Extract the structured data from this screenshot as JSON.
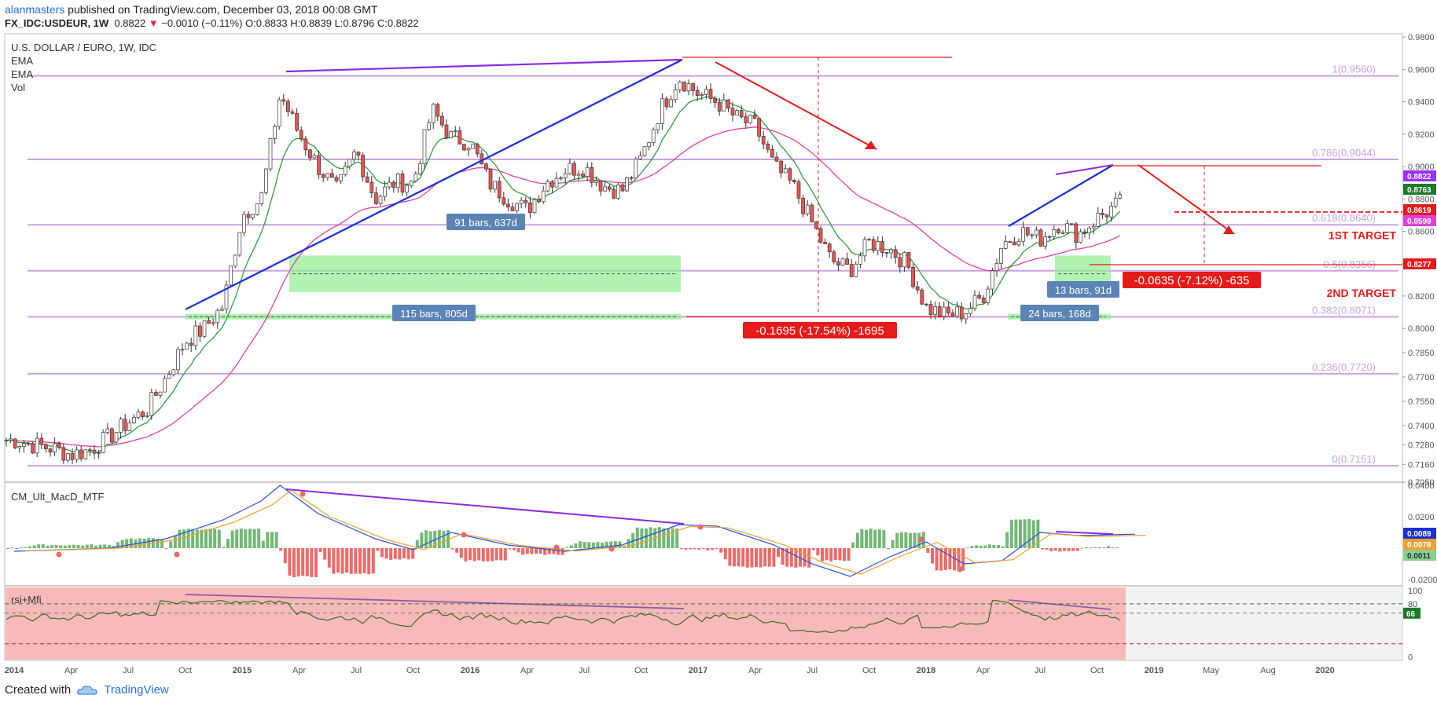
{
  "header": {
    "user": "alanmasters",
    "published_text": "published on TradingView.com, December 03, 2018 00:08 GMT",
    "symbol": "FX_IDC:USDEUR, 1W",
    "last": "0.8822",
    "change_arrow": "▼",
    "change": "−0.0010 (−0.11%)",
    "o": "O:0.8833",
    "h": "H:0.8839",
    "l": "L:0.8796",
    "c": "C:0.8822"
  },
  "footer": {
    "created_with": "Created with",
    "brand": "TradingView",
    "brand_icon": "tradingview-cloud-icon"
  },
  "colors": {
    "up": "#26a69a",
    "down": "#ef5350",
    "ema_fast": "#2e9e3e",
    "ema_slow": "#e040a0",
    "fib": "#c9a3e0",
    "trend_blue": "#1a2fd6",
    "trend_purple": "#8a2be2",
    "target": "#e51b1b",
    "range_fill": "#90ee90",
    "macd": "#2a4fd8",
    "signal": "#f0a030",
    "rsi": "#3e6b1f"
  },
  "chart_data": [
    {
      "type": "candlestick",
      "title": "U.S. DOLLAR / EURO, 1W, IDC",
      "indicators": [
        "EMA",
        "EMA",
        "Vol"
      ],
      "ylim": [
        0.705,
        0.982
      ],
      "y_ticks": [
        "0.9800",
        "0.9600",
        "0.9400",
        "0.9200",
        "0.9000",
        "0.8800",
        "0.8600",
        "0.8400",
        "0.8200",
        "0.8000",
        "0.7850",
        "0.7700",
        "0.7550",
        "0.7400",
        "0.7280",
        "0.7160",
        "0.7050"
      ],
      "x_ticks": [
        "2014",
        "Apr",
        "Jul",
        "Oct",
        "2015",
        "Apr",
        "Jul",
        "Oct",
        "2016",
        "Apr",
        "Jul",
        "Oct",
        "2017",
        "Apr",
        "Jul",
        "Oct",
        "2018",
        "Apr",
        "Jul",
        "Oct",
        "2019",
        "May",
        "Aug",
        "2020"
      ],
      "close_path": [
        [
          "2014-01",
          0.731
        ],
        [
          "2014-02",
          0.728
        ],
        [
          "2014-03",
          0.726
        ],
        [
          "2014-04",
          0.722
        ],
        [
          "2014-05",
          0.725
        ],
        [
          "2014-06",
          0.733
        ],
        [
          "2014-07",
          0.742
        ],
        [
          "2014-08",
          0.75
        ],
        [
          "2014-09",
          0.77
        ],
        [
          "2014-10",
          0.792
        ],
        [
          "2014-11",
          0.8
        ],
        [
          "2014-12",
          0.814
        ],
        [
          "2015-01",
          0.87
        ],
        [
          "2015-02",
          0.88
        ],
        [
          "2015-03",
          0.945
        ],
        [
          "2015-04",
          0.92
        ],
        [
          "2015-05",
          0.9
        ],
        [
          "2015-06",
          0.885
        ],
        [
          "2015-07",
          0.91
        ],
        [
          "2015-08",
          0.88
        ],
        [
          "2015-09",
          0.89
        ],
        [
          "2015-10",
          0.89
        ],
        [
          "2015-11",
          0.935
        ],
        [
          "2015-12",
          0.918
        ],
        [
          "2016-01",
          0.915
        ],
        [
          "2016-02",
          0.89
        ],
        [
          "2016-03",
          0.88
        ],
        [
          "2016-04",
          0.873
        ],
        [
          "2016-05",
          0.89
        ],
        [
          "2016-06",
          0.898
        ],
        [
          "2016-07",
          0.9
        ],
        [
          "2016-08",
          0.888
        ],
        [
          "2016-09",
          0.885
        ],
        [
          "2016-10",
          0.905
        ],
        [
          "2016-11",
          0.935
        ],
        [
          "2016-12",
          0.955
        ],
        [
          "2017-01",
          0.945
        ],
        [
          "2017-02",
          0.94
        ],
        [
          "2017-03",
          0.93
        ],
        [
          "2017-04",
          0.925
        ],
        [
          "2017-05",
          0.9
        ],
        [
          "2017-06",
          0.888
        ],
        [
          "2017-07",
          0.865
        ],
        [
          "2017-08",
          0.842
        ],
        [
          "2017-09",
          0.836
        ],
        [
          "2017-10",
          0.853
        ],
        [
          "2017-11",
          0.85
        ],
        [
          "2017-12",
          0.84
        ],
        [
          "2018-01",
          0.813
        ],
        [
          "2018-02",
          0.808
        ],
        [
          "2018-03",
          0.81
        ],
        [
          "2018-04",
          0.82
        ],
        [
          "2018-05",
          0.852
        ],
        [
          "2018-06",
          0.86
        ],
        [
          "2018-07",
          0.855
        ],
        [
          "2018-08",
          0.865
        ],
        [
          "2018-09",
          0.858
        ],
        [
          "2018-10",
          0.868
        ],
        [
          "2018-11",
          0.876
        ],
        [
          "2018-12",
          0.8822
        ]
      ],
      "fib_levels": [
        {
          "label": "1(0.9560)",
          "value": 0.956
        },
        {
          "label": "0.786(0.9044)",
          "value": 0.9044
        },
        {
          "label": "0.618(0.8640)",
          "value": 0.864
        },
        {
          "label": "0.5(0.8356)",
          "value": 0.8356
        },
        {
          "label": "0.382(0.8071)",
          "value": 0.8071
        },
        {
          "label": "0.236(0.7720)",
          "value": 0.772
        },
        {
          "label": "0(0.7151)",
          "value": 0.7151
        }
      ],
      "price_labels": [
        {
          "value": "0.8822",
          "color": "#9b30ff"
        },
        {
          "value": "0.8763",
          "color": "#1b7a2b"
        },
        {
          "value": "0.8619",
          "color": "#e51b1b"
        },
        {
          "value": "0.8599",
          "color": "#e040e0"
        },
        {
          "value": "0.8277",
          "color": "#e51b1b"
        }
      ],
      "measures": [
        {
          "text": "91 bars, 637d"
        },
        {
          "text": "115 bars, 805d"
        },
        {
          "text": "13 bars, 91d"
        },
        {
          "text": "24 bars, 168d"
        }
      ],
      "changes": [
        {
          "text": "-0.1695 (-17.54%) -1695"
        },
        {
          "text": "-0.0635 (-7.12%) -635"
        }
      ],
      "targets": [
        {
          "label": "1ST TARGET",
          "value": 0.8619
        },
        {
          "label": "2ND TARGET",
          "value": 0.8277
        }
      ]
    },
    {
      "type": "line",
      "title": "CM_Ult_MacD_MTF",
      "ylim": [
        -0.024,
        0.042
      ],
      "y_ticks": [
        "0.0400",
        "0.0200",
        "-0.0200"
      ],
      "price_labels": [
        {
          "value": "0.0089",
          "color": "#1a2fd6"
        },
        {
          "value": "0.0078",
          "color": "#f0a030"
        },
        {
          "value": "0.0011",
          "color": "#8ccf8c"
        }
      ],
      "macd_path": [
        [
          "2014-01",
          -0.002
        ],
        [
          "2014-06",
          0.0
        ],
        [
          "2014-09",
          0.006
        ],
        [
          "2014-12",
          0.018
        ],
        [
          "2015-02",
          0.03
        ],
        [
          "2015-03",
          0.04
        ],
        [
          "2015-05",
          0.022
        ],
        [
          "2015-08",
          0.006
        ],
        [
          "2015-10",
          -0.001
        ],
        [
          "2015-12",
          0.01
        ],
        [
          "2016-03",
          0.002
        ],
        [
          "2016-06",
          -0.002
        ],
        [
          "2016-09",
          0.002
        ],
        [
          "2016-12",
          0.015
        ],
        [
          "2017-02",
          0.014
        ],
        [
          "2017-05",
          0.002
        ],
        [
          "2017-07",
          -0.01
        ],
        [
          "2017-09",
          -0.018
        ],
        [
          "2017-11",
          -0.006
        ],
        [
          "2018-01",
          0.004
        ],
        [
          "2018-03",
          -0.01
        ],
        [
          "2018-05",
          -0.008
        ],
        [
          "2018-07",
          0.01
        ],
        [
          "2018-09",
          0.008
        ],
        [
          "2018-12",
          0.0089
        ]
      ]
    },
    {
      "type": "line",
      "title": "rsi+Mfi",
      "ylim": [
        0,
        100
      ],
      "y_ticks": [
        "100",
        "80",
        "66",
        "0"
      ],
      "levels": [
        80,
        66,
        20
      ],
      "last_value": "66"
    }
  ]
}
